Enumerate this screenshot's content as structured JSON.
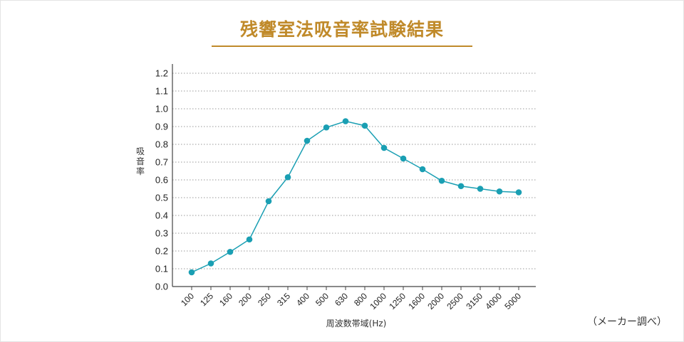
{
  "chart_data": {
    "type": "line",
    "title": "残響室法吸音率試験結果",
    "xlabel": "周波数帯域(Hz)",
    "ylabel": "吸音率",
    "note": "（メーカー調べ）",
    "categories": [
      "100",
      "125",
      "160",
      "200",
      "250",
      "315",
      "400",
      "500",
      "630",
      "800",
      "1000",
      "1250",
      "1600",
      "2000",
      "2500",
      "3150",
      "4000",
      "5000"
    ],
    "values": [
      0.08,
      0.13,
      0.195,
      0.265,
      0.48,
      0.615,
      0.82,
      0.895,
      0.93,
      0.905,
      0.78,
      0.72,
      0.66,
      0.595,
      0.565,
      0.55,
      0.535,
      0.53
    ],
    "ylim": [
      0,
      1.2
    ],
    "yticks": [
      "0.0",
      "0.1",
      "0.2",
      "0.3",
      "0.4",
      "0.5",
      "0.6",
      "0.7",
      "0.8",
      "0.9",
      "1.0",
      "1.1",
      "1.2"
    ],
    "grid": true,
    "colors": {
      "line": "#1a9fb3",
      "title": "#c08a2a"
    }
  }
}
